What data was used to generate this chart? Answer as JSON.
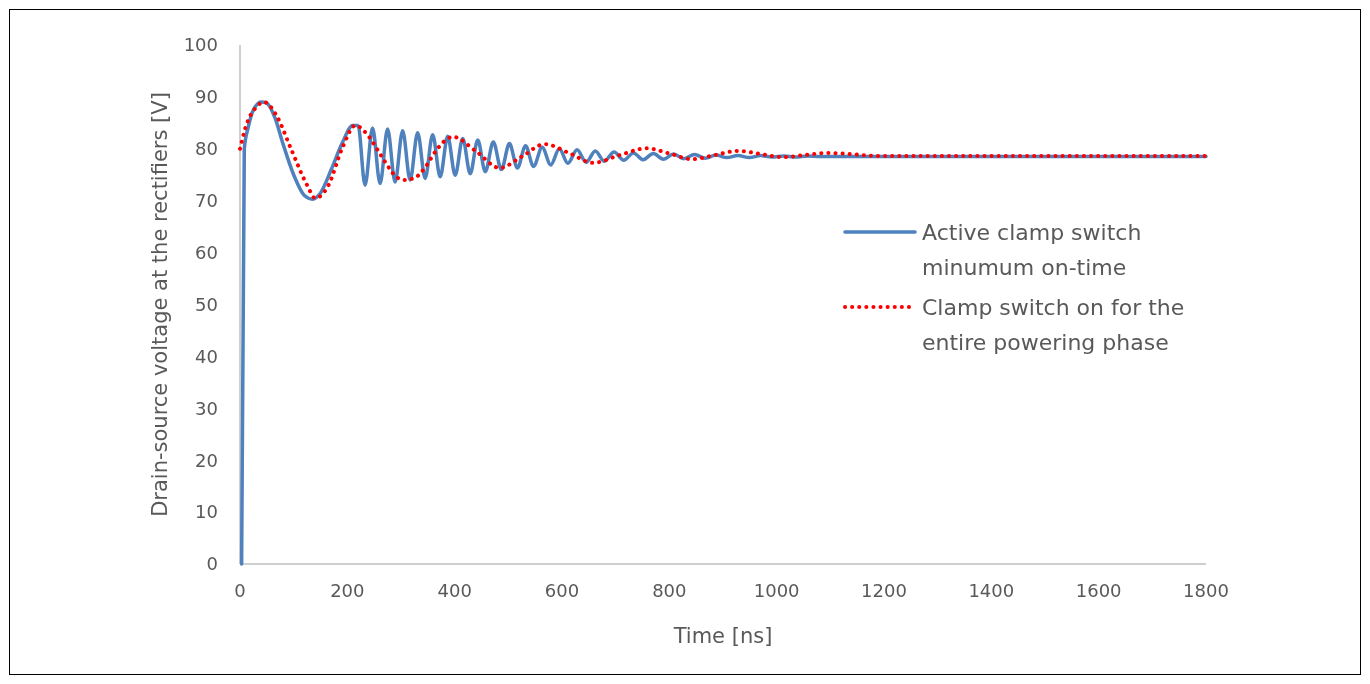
{
  "chart_data": {
    "type": "line",
    "xlabel": "Time [ns]",
    "ylabel": "Drain-source voltage at the rectifiers [V]",
    "xlim": [
      0,
      1800
    ],
    "xticks": [
      0,
      200,
      400,
      600,
      800,
      1000,
      1200,
      1400,
      1600,
      1800
    ],
    "ylim": [
      0,
      100
    ],
    "yticks": [
      0,
      10,
      20,
      30,
      40,
      50,
      60,
      70,
      80,
      90,
      100
    ],
    "grid": false,
    "legend": "right",
    "series": [
      {
        "name": "Active clamp switch minumum on-time",
        "color": "#4f81bd",
        "line_style": "solid",
        "x": [
          3,
          8,
          15,
          25,
          40,
          50,
          65,
          80,
          100,
          120,
          135,
          150,
          170,
          190,
          210,
          220,
          233,
          247,
          261,
          275,
          289,
          303,
          317,
          331,
          345,
          359,
          373,
          387,
          401,
          415,
          429,
          443,
          457,
          472,
          487,
          502,
          517,
          532,
          547,
          563,
          579,
          595,
          611,
          628,
          645,
          662,
          679,
          697,
          715,
          733,
          751,
          770,
          789,
          808,
          827,
          847,
          867,
          887,
          907,
          928,
          949,
          970,
          991,
          1013,
          1035,
          1057,
          1080,
          1103,
          1200,
          1800
        ],
        "values": [
          0,
          80,
          84,
          87.5,
          89,
          88.8,
          86,
          81,
          75,
          71,
          70.3,
          71.5,
          76,
          81,
          84.5,
          84.5,
          73,
          84,
          73.3,
          83.8,
          73.6,
          83.5,
          74,
          83.1,
          74.3,
          82.7,
          74.6,
          82.4,
          74.9,
          82,
          75.2,
          81.7,
          75.6,
          81.3,
          76,
          81,
          76.3,
          80.6,
          76.6,
          80.3,
          76.9,
          80,
          77.2,
          79.8,
          77.4,
          79.6,
          77.6,
          79.4,
          77.8,
          79.2,
          77.9,
          79.1,
          78,
          79,
          78.1,
          78.9,
          78.2,
          78.8,
          78.3,
          78.7,
          78.3,
          78.7,
          78.4,
          78.6,
          78.4,
          78.6,
          78.5,
          78.5,
          78.5,
          78.5
        ]
      },
      {
        "name": "Clamp switch on for the entire powering phase",
        "color": "#ff0000",
        "line_style": "dotted",
        "x": [
          0,
          10,
          30,
          45,
          70,
          95,
          125,
          140,
          165,
          190,
          215,
          239,
          261,
          280,
          292,
          308,
          327,
          349,
          361,
          397,
          440,
          484,
          525,
          568,
          613,
          658,
          708,
          758,
          800,
          842,
          885,
          928,
          970,
          1012,
          1053,
          1094,
          1200,
          1400,
          1800
        ],
        "values": [
          80,
          84,
          88,
          89,
          86,
          80,
          73,
          70.5,
          73,
          80,
          84.5,
          82.5,
          79,
          76,
          74.5,
          74,
          74.5,
          77,
          79,
          82.3,
          79.5,
          76.3,
          78.5,
          80.9,
          79.2,
          77.3,
          78.8,
          80.1,
          79.1,
          78,
          78.8,
          79.6,
          79,
          78.4,
          78.8,
          79.2,
          78.6,
          78.6,
          78.6
        ]
      }
    ]
  }
}
